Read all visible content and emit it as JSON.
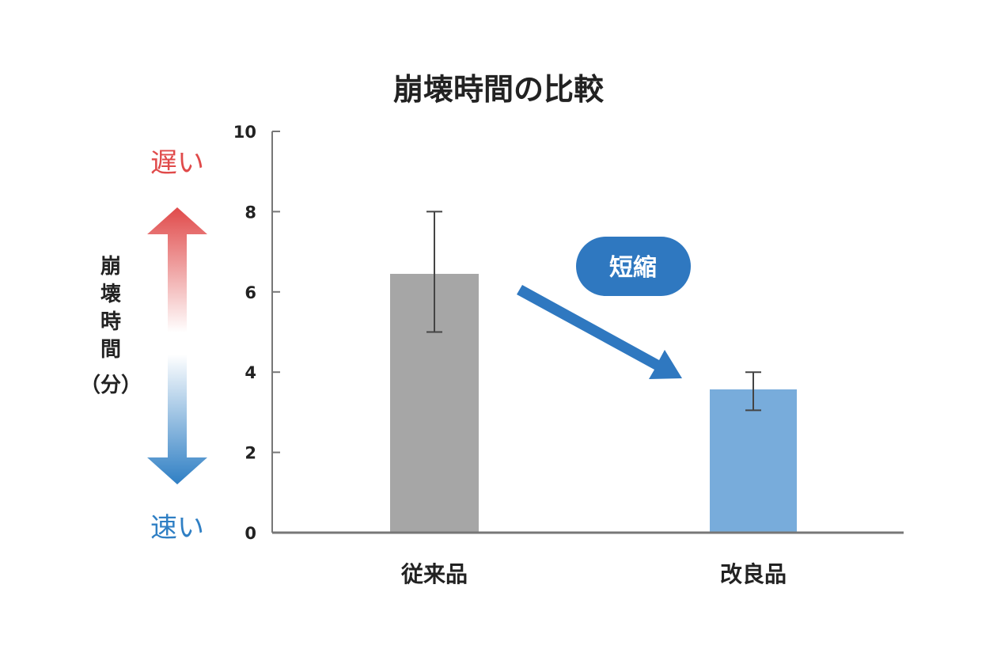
{
  "colors": {
    "original_bar": "#a6a6a6",
    "improved_bar": "#78acdb",
    "arrow_blue": "#2f78c0",
    "slow_red": "#e04a4a",
    "fast_blue": "#2f7fc4",
    "axis": "#777777"
  },
  "side_scale": {
    "slow_label": "遅い",
    "fast_label": "速い",
    "ylabel_chars": [
      "崩",
      "壊",
      "時",
      "間"
    ],
    "ylabel_unit": "（分）"
  },
  "annotation": {
    "label": "短縮",
    "icon": "down-right-arrow-icon"
  },
  "chart_data": {
    "type": "bar",
    "title": "崩壊時間の比較",
    "categories": [
      "従来品",
      "改良品"
    ],
    "values": [
      6.45,
      3.57
    ],
    "error_low": [
      5.0,
      3.05
    ],
    "error_high": [
      8.0,
      4.0
    ],
    "ylabel": "崩壊時間（分）",
    "xlabel": "",
    "ylim": [
      0,
      10
    ],
    "yticks": [
      0,
      2,
      4,
      6,
      8,
      10
    ],
    "grid": false
  }
}
